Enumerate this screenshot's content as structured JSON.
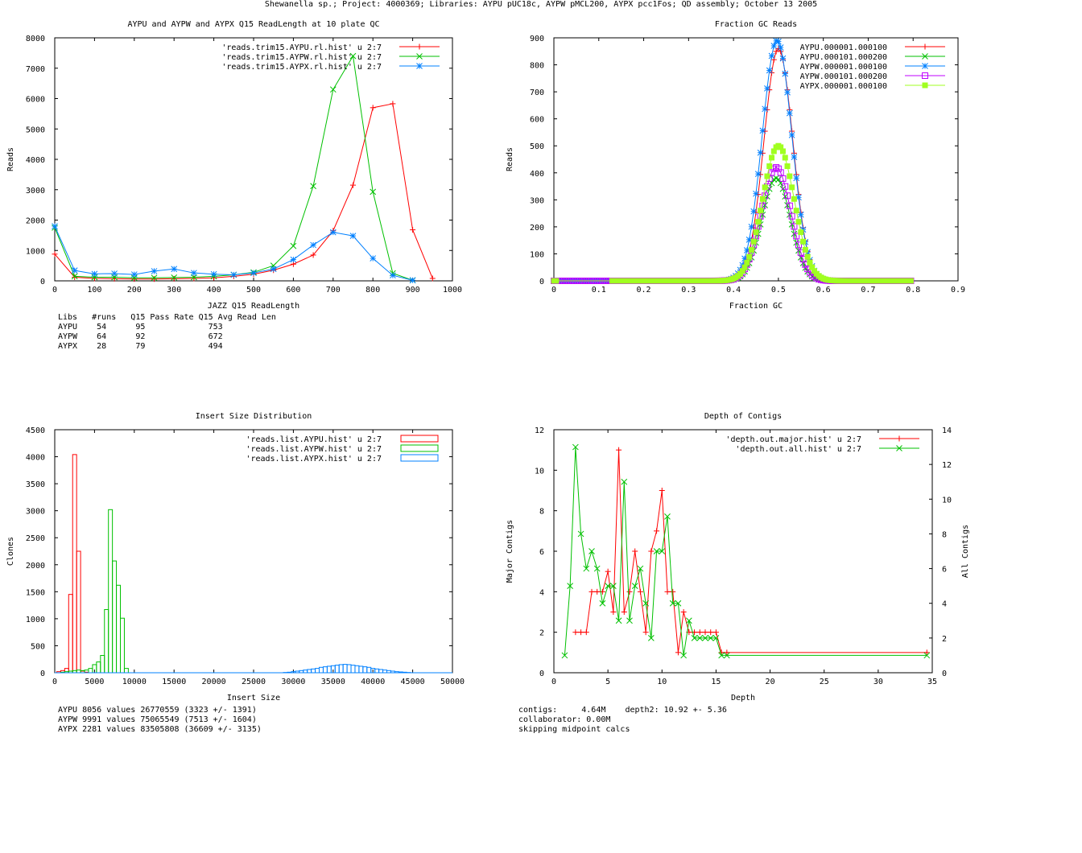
{
  "page": {
    "title": "Shewanella sp.; Project: 4000369; Libraries: AYPU pUC18c, AYPW pMCL200, AYPX pcc1Fos; QD assembly; October 13 2005"
  },
  "colors": {
    "red": "#ff0000",
    "green": "#00c000",
    "blue": "#0080ff",
    "magenta": "#c000ff",
    "lime": "#a0ff20"
  },
  "readlength_stats": {
    "header": [
      "Libs",
      "#runs",
      "Q15 Pass Rate",
      "Q15 Avg Read Len"
    ],
    "rows": [
      [
        "AYPU",
        "54",
        "95",
        "753"
      ],
      [
        "AYPW",
        "64",
        "92",
        "672"
      ],
      [
        "AYPX",
        "28",
        "79",
        "494"
      ]
    ]
  },
  "insert_stats": {
    "lines": [
      "AYPU 8056 values 26770559 (3323 +/- 1391)",
      "AYPW 9991 values 75065549 (7513 +/- 1604)",
      "AYPX 2281 values 83505808 (36609 +/- 3135)"
    ]
  },
  "depth_stats": {
    "lines": [
      "contigs:     4.64M    depth2: 10.92 +- 5.36",
      "collaborator: 0.00M",
      "skipping midpoint calcs"
    ]
  },
  "chart_data": [
    {
      "type": "line",
      "title": "AYPU and AYPW and AYPX Q15 ReadLength at 10 plate QC",
      "xlabel": "JAZZ Q15 ReadLength",
      "ylabel": "Reads",
      "xlim": [
        0,
        1000
      ],
      "ylim": [
        0,
        8000
      ],
      "xticks": [
        0,
        100,
        200,
        300,
        400,
        500,
        600,
        700,
        800,
        900,
        1000
      ],
      "yticks": [
        0,
        1000,
        2000,
        3000,
        4000,
        5000,
        6000,
        7000,
        8000
      ],
      "legend_position": "top-right",
      "series": [
        {
          "name": "'reads.trim15.AYPU.rl.hist' u 2:7",
          "color": "#ff0000",
          "marker": "plus",
          "x": [
            0,
            50,
            100,
            150,
            200,
            250,
            300,
            350,
            400,
            450,
            500,
            550,
            600,
            650,
            700,
            750,
            800,
            850,
            900,
            950
          ],
          "y": [
            880,
            120,
            80,
            70,
            60,
            60,
            70,
            80,
            100,
            150,
            220,
            350,
            550,
            850,
            1650,
            3150,
            5700,
            5830,
            1680,
            80
          ]
        },
        {
          "name": "'reads.trim15.AYPW.rl.hist' u 2:7",
          "color": "#00c000",
          "marker": "x",
          "x": [
            0,
            50,
            100,
            150,
            200,
            250,
            300,
            350,
            400,
            450,
            500,
            550,
            600,
            650,
            700,
            750,
            800,
            850,
            900
          ],
          "y": [
            1750,
            150,
            120,
            120,
            100,
            100,
            110,
            120,
            150,
            200,
            280,
            500,
            1150,
            3120,
            6300,
            7400,
            2930,
            250,
            20
          ]
        },
        {
          "name": "'reads.trim15.AYPX.rl.hist' u 2:7",
          "color": "#0080ff",
          "marker": "star",
          "x": [
            0,
            50,
            100,
            150,
            200,
            250,
            300,
            350,
            400,
            450,
            500,
            550,
            600,
            650,
            700,
            750,
            800,
            850,
            900
          ],
          "y": [
            1800,
            340,
            230,
            240,
            210,
            320,
            390,
            260,
            220,
            200,
            260,
            390,
            700,
            1180,
            1600,
            1480,
            740,
            180,
            20
          ]
        }
      ]
    },
    {
      "type": "scatter",
      "title": "Fraction GC Reads",
      "xlabel": "Fraction GC",
      "ylabel": "Reads",
      "xlim": [
        0,
        0.9
      ],
      "ylim": [
        0,
        900
      ],
      "xticks": [
        0,
        0.1,
        0.2,
        0.3,
        0.4,
        0.5,
        0.6,
        0.7,
        0.8,
        0.9
      ],
      "xticklabels": [
        "0",
        "0.1",
        "0.2",
        "0.3",
        "0.4",
        "0.5",
        "0.6",
        "0.7",
        "0.8",
        "0.9"
      ],
      "yticks": [
        0,
        100,
        200,
        300,
        400,
        500,
        600,
        700,
        800,
        900
      ],
      "legend_position": "top-right",
      "series": [
        {
          "name": "AYPU.000001.000100",
          "color": "#ff0000",
          "marker": "plus",
          "center": 0.5,
          "peak": 860,
          "width": 0.032
        },
        {
          "name": "AYPU.000101.000200",
          "color": "#00c000",
          "marker": "x",
          "center": 0.495,
          "peak": 380,
          "width": 0.032
        },
        {
          "name": "AYPW.000001.000100",
          "color": "#0080ff",
          "marker": "star",
          "center": 0.497,
          "peak": 890,
          "width": 0.033
        },
        {
          "name": "AYPW.000101.000200",
          "color": "#c000ff",
          "marker": "box",
          "center": 0.495,
          "peak": 420,
          "width": 0.033
        },
        {
          "name": "AYPX.000001.000100",
          "color": "#a0ff20",
          "marker": "filledbox",
          "center": 0.5,
          "peak": 500,
          "width": 0.035
        }
      ]
    },
    {
      "type": "bar",
      "title": "Insert Size Distribution",
      "xlabel": "Insert Size",
      "ylabel": "Clones",
      "xlim": [
        0,
        50000
      ],
      "ylim": [
        0,
        4500
      ],
      "xticks": [
        0,
        5000,
        10000,
        15000,
        20000,
        25000,
        30000,
        35000,
        40000,
        45000,
        50000
      ],
      "yticks": [
        0,
        500,
        1000,
        1500,
        2000,
        2500,
        3000,
        3500,
        4000,
        4500
      ],
      "legend_position": "top-right",
      "series": [
        {
          "name": "'reads.list.AYPU.hist' u 2:7",
          "color": "#ff0000",
          "binwidth": 500,
          "x": [
            500,
            1000,
            1500,
            2000,
            2500,
            3000,
            3500,
            4000
          ],
          "y": [
            20,
            40,
            80,
            1450,
            4040,
            2250,
            30,
            10
          ]
        },
        {
          "name": "'reads.list.AYPW.hist' u 2:7",
          "color": "#00c000",
          "binwidth": 500,
          "x": [
            1000,
            1500,
            2000,
            2500,
            3000,
            3500,
            4000,
            4500,
            5000,
            5500,
            6000,
            6500,
            7000,
            7500,
            8000,
            8500,
            9000
          ],
          "y": [
            10,
            20,
            30,
            40,
            50,
            40,
            50,
            80,
            150,
            200,
            320,
            1170,
            3020,
            2070,
            1620,
            1010,
            80
          ]
        },
        {
          "name": "'reads.list.AYPX.hist' u 2:7",
          "color": "#0080ff",
          "binwidth": 500,
          "x": [
            29000,
            29500,
            30000,
            30500,
            31000,
            31500,
            32000,
            32500,
            33000,
            33500,
            34000,
            34500,
            35000,
            35500,
            36000,
            36500,
            37000,
            37500,
            38000,
            38500,
            39000,
            39500,
            40000,
            40500,
            41000,
            41500,
            42000,
            42500,
            43000,
            43500,
            44000,
            44500
          ],
          "y": [
            5,
            10,
            20,
            30,
            40,
            50,
            60,
            70,
            80,
            100,
            110,
            120,
            130,
            140,
            150,
            155,
            150,
            140,
            130,
            120,
            110,
            100,
            80,
            70,
            60,
            50,
            40,
            30,
            20,
            15,
            10,
            5
          ]
        }
      ]
    },
    {
      "type": "line",
      "title": "Depth of Contigs",
      "xlabel": "Depth",
      "ylabel": "Major Contigs",
      "y2label": "All Contigs",
      "xlim": [
        0,
        35
      ],
      "ylim": [
        0,
        12
      ],
      "y2lim": [
        0,
        14
      ],
      "xticks": [
        0,
        5,
        10,
        15,
        20,
        25,
        30,
        35
      ],
      "yticks": [
        0,
        2,
        4,
        6,
        8,
        10,
        12
      ],
      "y2ticks": [
        0,
        2,
        4,
        6,
        8,
        10,
        12,
        14
      ],
      "legend_position": "top-right",
      "series": [
        {
          "name": "'depth.out.major.hist' u 2:7",
          "color": "#ff0000",
          "marker": "plus",
          "axis": "y1",
          "x": [
            2,
            2.5,
            3,
            3.5,
            4,
            4.5,
            5,
            5.5,
            6,
            6.5,
            7,
            7.5,
            8,
            8.5,
            9,
            9.5,
            10,
            10.5,
            11,
            11.5,
            12,
            12.5,
            13,
            13.5,
            14,
            14.5,
            15,
            15.5,
            16,
            34.5
          ],
          "y": [
            2,
            2,
            2,
            4,
            4,
            4,
            5,
            3,
            11,
            3,
            4,
            6,
            4,
            2,
            6,
            7,
            9,
            4,
            4,
            1,
            3,
            2,
            2,
            2,
            2,
            2,
            2,
            1,
            1,
            1
          ]
        },
        {
          "name": "'depth.out.all.hist' u 2:7",
          "color": "#00c000",
          "marker": "x",
          "axis": "y2",
          "x": [
            1,
            1.5,
            2,
            2.5,
            3,
            3.5,
            4,
            4.5,
            5,
            5.5,
            6,
            6.5,
            7,
            7.5,
            8,
            8.5,
            9,
            9.5,
            10,
            10.5,
            11,
            11.5,
            12,
            12.5,
            13,
            13.5,
            14,
            14.5,
            15,
            15.5,
            16,
            34.5
          ],
          "y": [
            1,
            5,
            13,
            8,
            6,
            7,
            6,
            4,
            5,
            5,
            3,
            11,
            3,
            5,
            6,
            4,
            2,
            7,
            7,
            9,
            4,
            4,
            1,
            3,
            2,
            2,
            2,
            2,
            2,
            1,
            1,
            1
          ]
        }
      ]
    }
  ]
}
